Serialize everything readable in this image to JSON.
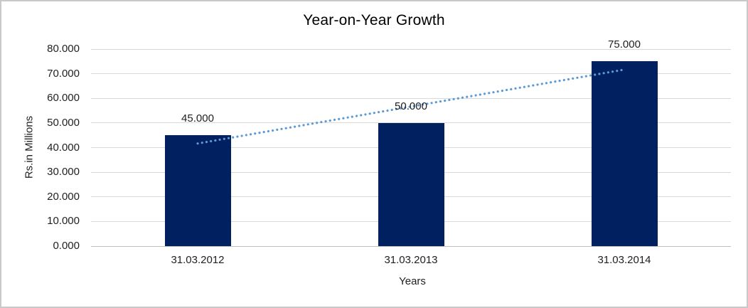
{
  "chart_data": {
    "type": "bar",
    "title": "Year-on-Year Growth",
    "xlabel": "Years",
    "ylabel": "Rs.in Millions",
    "categories": [
      "31.03.2012",
      "31.03.2013",
      "31.03.2014"
    ],
    "values": [
      45000,
      50000,
      75000
    ],
    "value_labels": [
      "45.000",
      "50.000",
      "75.000"
    ],
    "ylim": [
      0,
      80000
    ],
    "ytick_step": 10000,
    "ytick_labels": [
      "0.000",
      "10.000",
      "20.000",
      "30.000",
      "40.000",
      "50.000",
      "60.000",
      "70.000",
      "80.000"
    ],
    "grid": true,
    "legend": "none",
    "colors": {
      "bar": "#002060",
      "trendline": "#5b9bd5",
      "gridline": "#d9d9d9",
      "baseline": "#bfbfbf",
      "frame_border": "#c9c9c9",
      "text": "#1f1f1f"
    },
    "trendline": {
      "type": "linear",
      "style": "dotted",
      "fitted_values": [
        41667,
        56667,
        71667
      ]
    }
  }
}
